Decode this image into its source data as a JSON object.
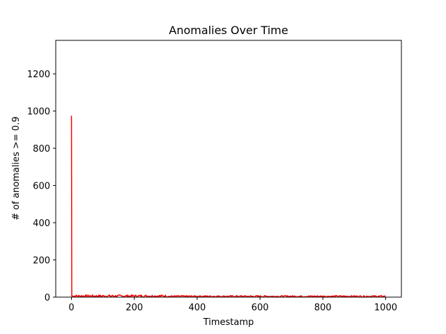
{
  "chart_data": {
    "type": "line",
    "title": "Anomalies Over Time",
    "xlabel": "Timestamp",
    "ylabel": "# of anomalies >= 0.9",
    "xlim": [
      -50,
      1050
    ],
    "ylim": [
      0,
      1380
    ],
    "xticks": [
      0,
      200,
      400,
      600,
      800,
      1000
    ],
    "yticks": [
      0,
      200,
      400,
      600,
      800,
      1000,
      1200
    ],
    "grid": false,
    "series": [
      {
        "name": "anomalies",
        "color": "#ff0000",
        "peak": {
          "x": 0,
          "y": 975
        },
        "baseline_range": [
          0,
          12
        ],
        "x_range": [
          0,
          1000
        ]
      }
    ]
  }
}
